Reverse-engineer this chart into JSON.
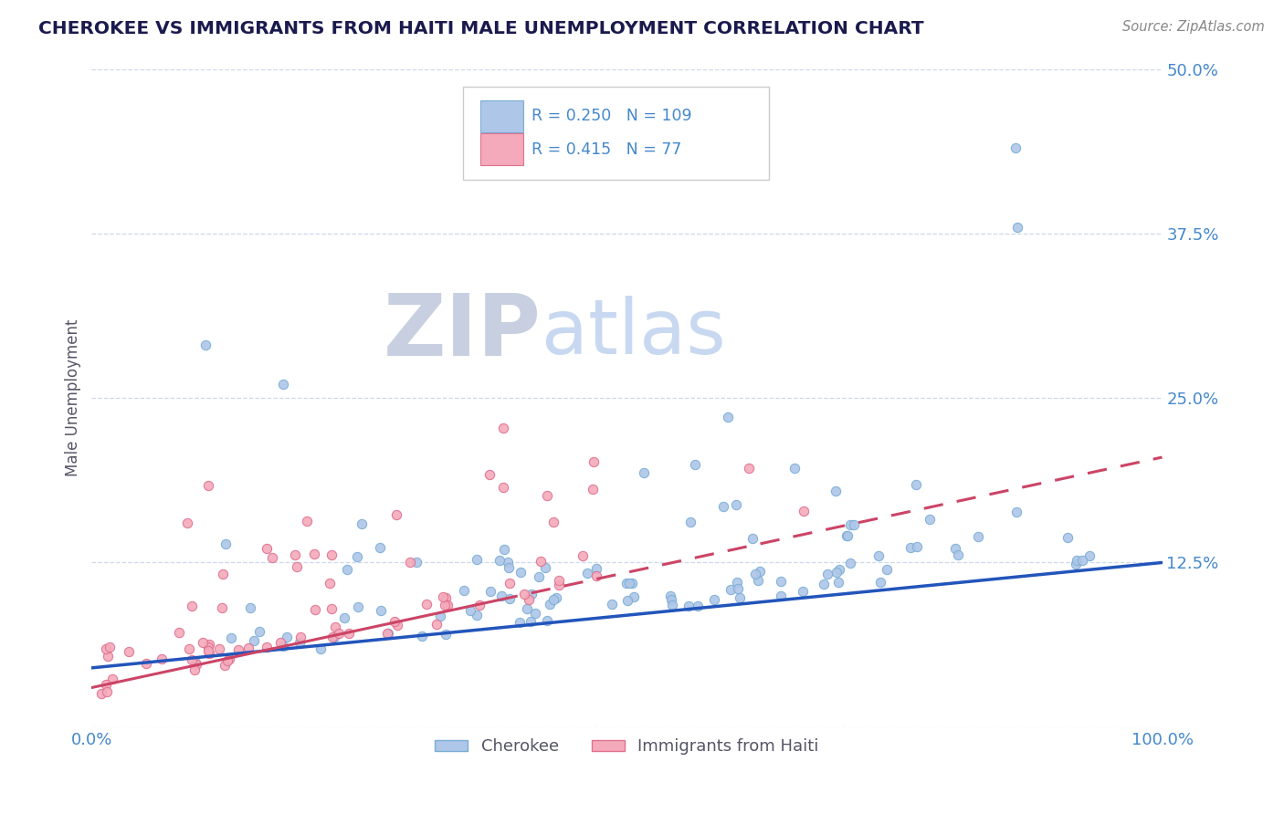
{
  "title": "CHEROKEE VS IMMIGRANTS FROM HAITI MALE UNEMPLOYMENT CORRELATION CHART",
  "source": "Source: ZipAtlas.com",
  "ylabel": "Male Unemployment",
  "xlim": [
    0.0,
    1.0
  ],
  "ylim": [
    0.0,
    0.5
  ],
  "yticks": [
    0.0,
    0.125,
    0.25,
    0.375,
    0.5
  ],
  "yticklabels": [
    "",
    "12.5%",
    "25.0%",
    "37.5%",
    "50.0%"
  ],
  "cherokee_color": "#aec6e8",
  "cherokee_edge": "#7aaed6",
  "haiti_color": "#f4aabb",
  "haiti_edge": "#e07090",
  "trend_cherokee_color": "#2255bb",
  "trend_haiti_color": "#cc4466",
  "trend_cherokee_start_y": 0.045,
  "trend_cherokee_end_y": 0.125,
  "trend_haiti_solid_end_x": 0.38,
  "trend_haiti_start_y": 0.03,
  "trend_haiti_end_y": 0.205,
  "R_cherokee": 0.25,
  "N_cherokee": 109,
  "R_haiti": 0.415,
  "N_haiti": 77,
  "background_color": "#ffffff",
  "grid_color": "#c8d4e8",
  "title_color": "#1a1a4e",
  "axis_label_color": "#555566",
  "tick_label_color": "#4488cc",
  "legend_label_cherokee": "Cherokee",
  "legend_label_haiti": "Immigrants from Haiti",
  "cherokee_seed": 42,
  "haiti_seed": 7
}
